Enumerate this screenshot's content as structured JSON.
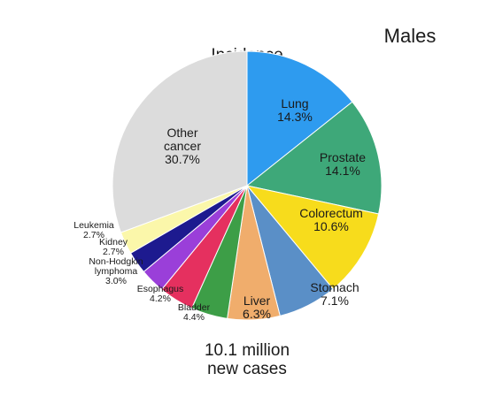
{
  "corner_title": "Males",
  "chart_data": {
    "type": "pie",
    "title": "Incidence",
    "footer_line1": "10.1 million",
    "footer_line2": "new cases",
    "slices": [
      {
        "label": "Lung",
        "value": 14.3,
        "display": "14.3%",
        "color": "#2e9bef"
      },
      {
        "label": "Prostate",
        "value": 14.1,
        "display": "14.1%",
        "color": "#3ea879"
      },
      {
        "label": "Colorectum",
        "value": 10.6,
        "display": "10.6%",
        "color": "#f7dc1c"
      },
      {
        "label": "Stomach",
        "value": 7.1,
        "display": "7.1%",
        "color": "#5a8fc7"
      },
      {
        "label": "Liver",
        "value": 6.3,
        "display": "6.3%",
        "color": "#f0ad6c"
      },
      {
        "label": "Bladder",
        "value": 4.4,
        "display": "4.4%",
        "color": "#3d9e47"
      },
      {
        "label": "Esophagus",
        "value": 4.2,
        "display": "4.2%",
        "color": "#e5305f"
      },
      {
        "label": "Non-Hodgkin lymphoma",
        "value": 3.0,
        "display": "3.0%",
        "color": "#9a3fd9"
      },
      {
        "label": "Kidney",
        "value": 2.7,
        "display": "2.7%",
        "color": "#1d1a8f"
      },
      {
        "label": "Leukemia",
        "value": 2.7,
        "display": "2.7%",
        "color": "#fbf7aa"
      },
      {
        "label": "Other cancer",
        "value": 30.7,
        "display": "30.7%",
        "color": "#dcdcdc"
      }
    ]
  }
}
